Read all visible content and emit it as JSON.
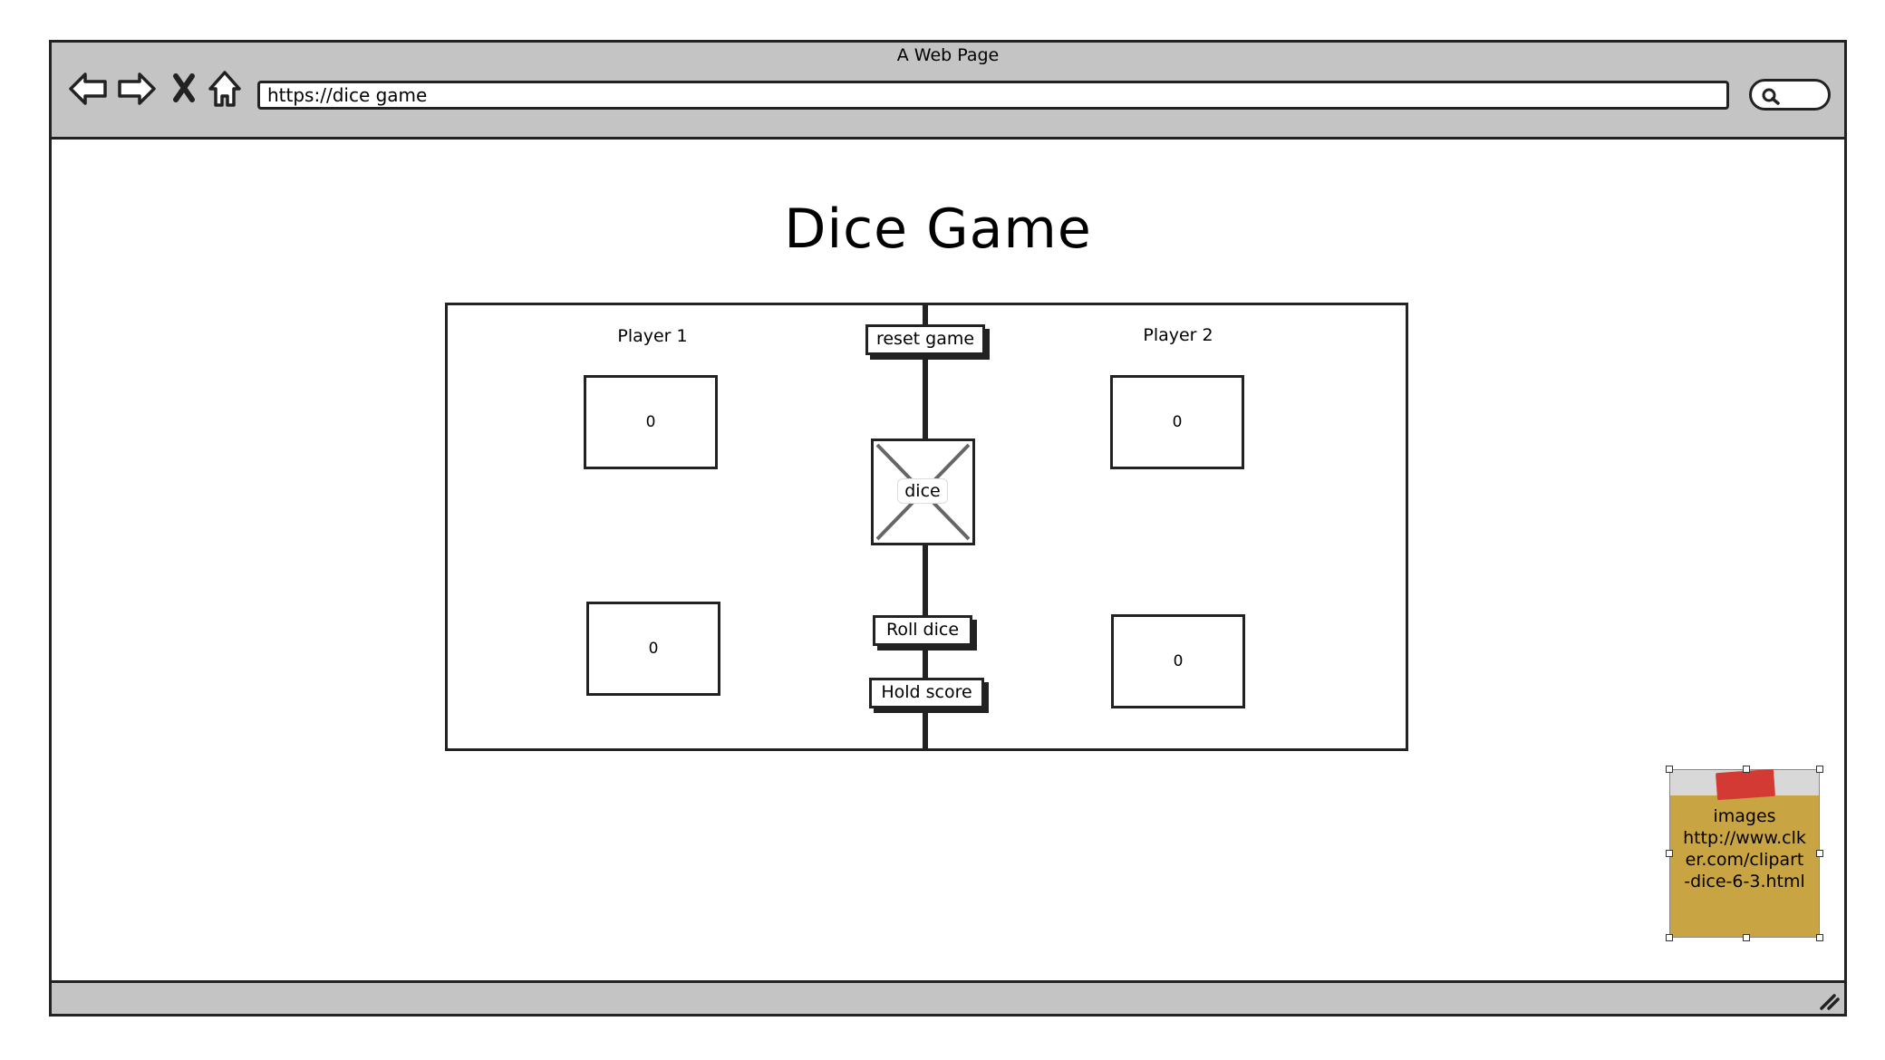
{
  "browser": {
    "title": "A Web Page",
    "url": "https://dice game"
  },
  "page": {
    "title": "Dice Game"
  },
  "game": {
    "player1": {
      "label": "Player 1",
      "total_score": "0",
      "current_score": "0"
    },
    "player2": {
      "label": "Player 2",
      "total_score": "0",
      "current_score": "0"
    },
    "reset_label": "reset game",
    "dice_label": "dice",
    "roll_label": "Roll dice",
    "hold_label": "Hold score"
  },
  "note": {
    "text": "images http://www.clker.com/clipart-dice-6-3.html",
    "lines": [
      "images",
      "http://www.clk",
      "er.com/clipart",
      "-dice-6-3.html"
    ],
    "color": "#c9a442",
    "pin_color": "#d23a33"
  },
  "icons": {
    "back": "arrow-left-icon",
    "forward": "arrow-right-icon",
    "stop": "close-icon",
    "home": "home-icon",
    "search": "search-icon",
    "resize": "resize-grip-icon"
  }
}
